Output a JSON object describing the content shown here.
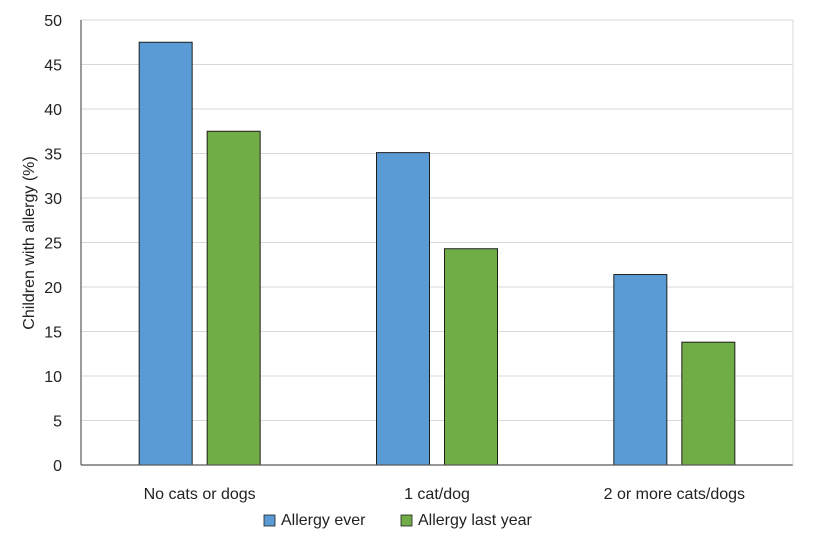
{
  "chart_data": {
    "type": "bar",
    "title": "",
    "xlabel": "",
    "ylabel": "Children with allergy (%)",
    "categories": [
      "No cats or dogs",
      "1 cat/dog",
      "2 or more cats/dogs"
    ],
    "series": [
      {
        "name": "Allergy ever",
        "color": "#5B9BD5",
        "values": [
          47.5,
          35.1,
          21.4
        ]
      },
      {
        "name": "Allergy last year",
        "color": "#70AD47",
        "values": [
          37.5,
          24.3,
          13.8
        ]
      }
    ],
    "ylim": [
      0,
      50
    ],
    "yticks": [
      "0",
      "5",
      "10",
      "15",
      "20",
      "25",
      "30",
      "35",
      "40",
      "45",
      "50"
    ],
    "grid": true,
    "legend_position": "bottom"
  }
}
